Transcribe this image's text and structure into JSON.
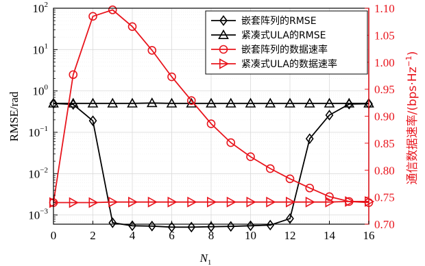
{
  "chart_data": {
    "type": "line",
    "xlabel": "N",
    "xlabel_sub": "1",
    "ylabel_left": "RMSE/rad",
    "ylabel_right": "通信数据速率/(bps·Hz",
    "ylabel_right_sup": "−1",
    "ylabel_right_end": ")",
    "xlim": [
      0,
      16
    ],
    "x_ticks": [
      0,
      2,
      4,
      6,
      8,
      10,
      12,
      14,
      16
    ],
    "y_left_scale": "log",
    "y_left_lim": [
      0.0006,
      100
    ],
    "y_left_ticks": [
      {
        "value": 0.001,
        "base": "10",
        "exp": "−3"
      },
      {
        "value": 0.01,
        "base": "10",
        "exp": "−2"
      },
      {
        "value": 0.1,
        "base": "10",
        "exp": "−1"
      },
      {
        "value": 1,
        "base": "10",
        "exp": "0"
      },
      {
        "value": 10,
        "base": "10",
        "exp": "1"
      },
      {
        "value": 100,
        "base": "10",
        "exp": "2"
      }
    ],
    "y_right_lim": [
      0.7,
      1.1
    ],
    "y_right_ticks": [
      "0.70",
      "0.75",
      "0.80",
      "0.85",
      "0.90",
      "0.95",
      "1.00",
      "1.05",
      "1.10"
    ],
    "grid": true,
    "legend_position": "top-right",
    "x": [
      0,
      1,
      2,
      3,
      4,
      5,
      6,
      7,
      8,
      9,
      10,
      11,
      12,
      13,
      14,
      15,
      16
    ],
    "series": [
      {
        "name": "嵌套阵列的RMSE",
        "axis": "left",
        "color": "#000000",
        "marker": "diamond",
        "values": [
          0.5,
          0.47,
          0.19,
          0.00065,
          0.00055,
          0.00054,
          0.00051,
          0.00051,
          0.00052,
          0.00053,
          0.00055,
          0.00057,
          0.00082,
          0.07,
          0.26,
          0.48,
          0.49
        ]
      },
      {
        "name": "紧凑式ULA的RMSE",
        "axis": "left",
        "color": "#000000",
        "marker": "triangle-up",
        "values": [
          0.5,
          0.5,
          0.5,
          0.5,
          0.5,
          0.51,
          0.5,
          0.5,
          0.5,
          0.5,
          0.5,
          0.5,
          0.5,
          0.5,
          0.5,
          0.5,
          0.5
        ]
      },
      {
        "name": "嵌套阵列的数据速率",
        "axis": "right",
        "color": "#e8141c",
        "marker": "circle",
        "values": [
          0.74,
          0.977,
          1.085,
          1.097,
          1.066,
          1.022,
          0.973,
          0.929,
          0.886,
          0.851,
          0.825,
          0.803,
          0.784,
          0.767,
          0.751,
          0.742,
          0.74
        ]
      },
      {
        "name": "紧凑式ULA的数据速率",
        "axis": "right",
        "color": "#e8141c",
        "marker": "triangle-right",
        "values": [
          0.74,
          0.74,
          0.74,
          0.741,
          0.741,
          0.741,
          0.741,
          0.741,
          0.741,
          0.741,
          0.741,
          0.741,
          0.741,
          0.741,
          0.741,
          0.742,
          0.742
        ]
      }
    ]
  }
}
